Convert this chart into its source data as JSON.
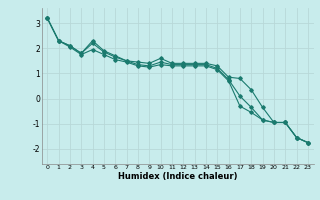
{
  "xlabel": "Humidex (Indice chaleur)",
  "bg_color": "#c8ecec",
  "grid_color": "#b8d8d8",
  "line_color": "#1a7a6e",
  "xlim": [
    -0.5,
    23.5
  ],
  "ylim": [
    -2.6,
    3.6
  ],
  "yticks": [
    -2,
    -1,
    0,
    1,
    2,
    3
  ],
  "xticks": [
    0,
    1,
    2,
    3,
    4,
    5,
    6,
    7,
    8,
    9,
    10,
    11,
    12,
    13,
    14,
    15,
    16,
    17,
    18,
    19,
    20,
    21,
    22,
    23
  ],
  "series": [
    [
      3.2,
      2.3,
      2.1,
      1.8,
      2.3,
      1.9,
      1.7,
      1.5,
      1.45,
      1.4,
      1.6,
      1.4,
      1.4,
      1.4,
      1.4,
      1.3,
      0.85,
      0.8,
      0.35,
      -0.35,
      -0.95,
      -0.95,
      -1.55,
      -1.75
    ],
    [
      3.2,
      2.3,
      2.1,
      1.8,
      2.2,
      1.85,
      1.65,
      1.5,
      1.35,
      1.3,
      1.45,
      1.35,
      1.35,
      1.35,
      1.35,
      1.2,
      0.75,
      0.1,
      -0.35,
      -0.85,
      -0.95,
      -0.95,
      -1.55,
      -1.75
    ],
    [
      3.2,
      2.3,
      2.05,
      1.75,
      1.95,
      1.75,
      1.55,
      1.45,
      1.3,
      1.25,
      1.35,
      1.3,
      1.3,
      1.3,
      1.3,
      1.15,
      0.7,
      -0.3,
      -0.55,
      -0.85,
      -0.95,
      -0.95,
      -1.55,
      -1.75
    ]
  ]
}
